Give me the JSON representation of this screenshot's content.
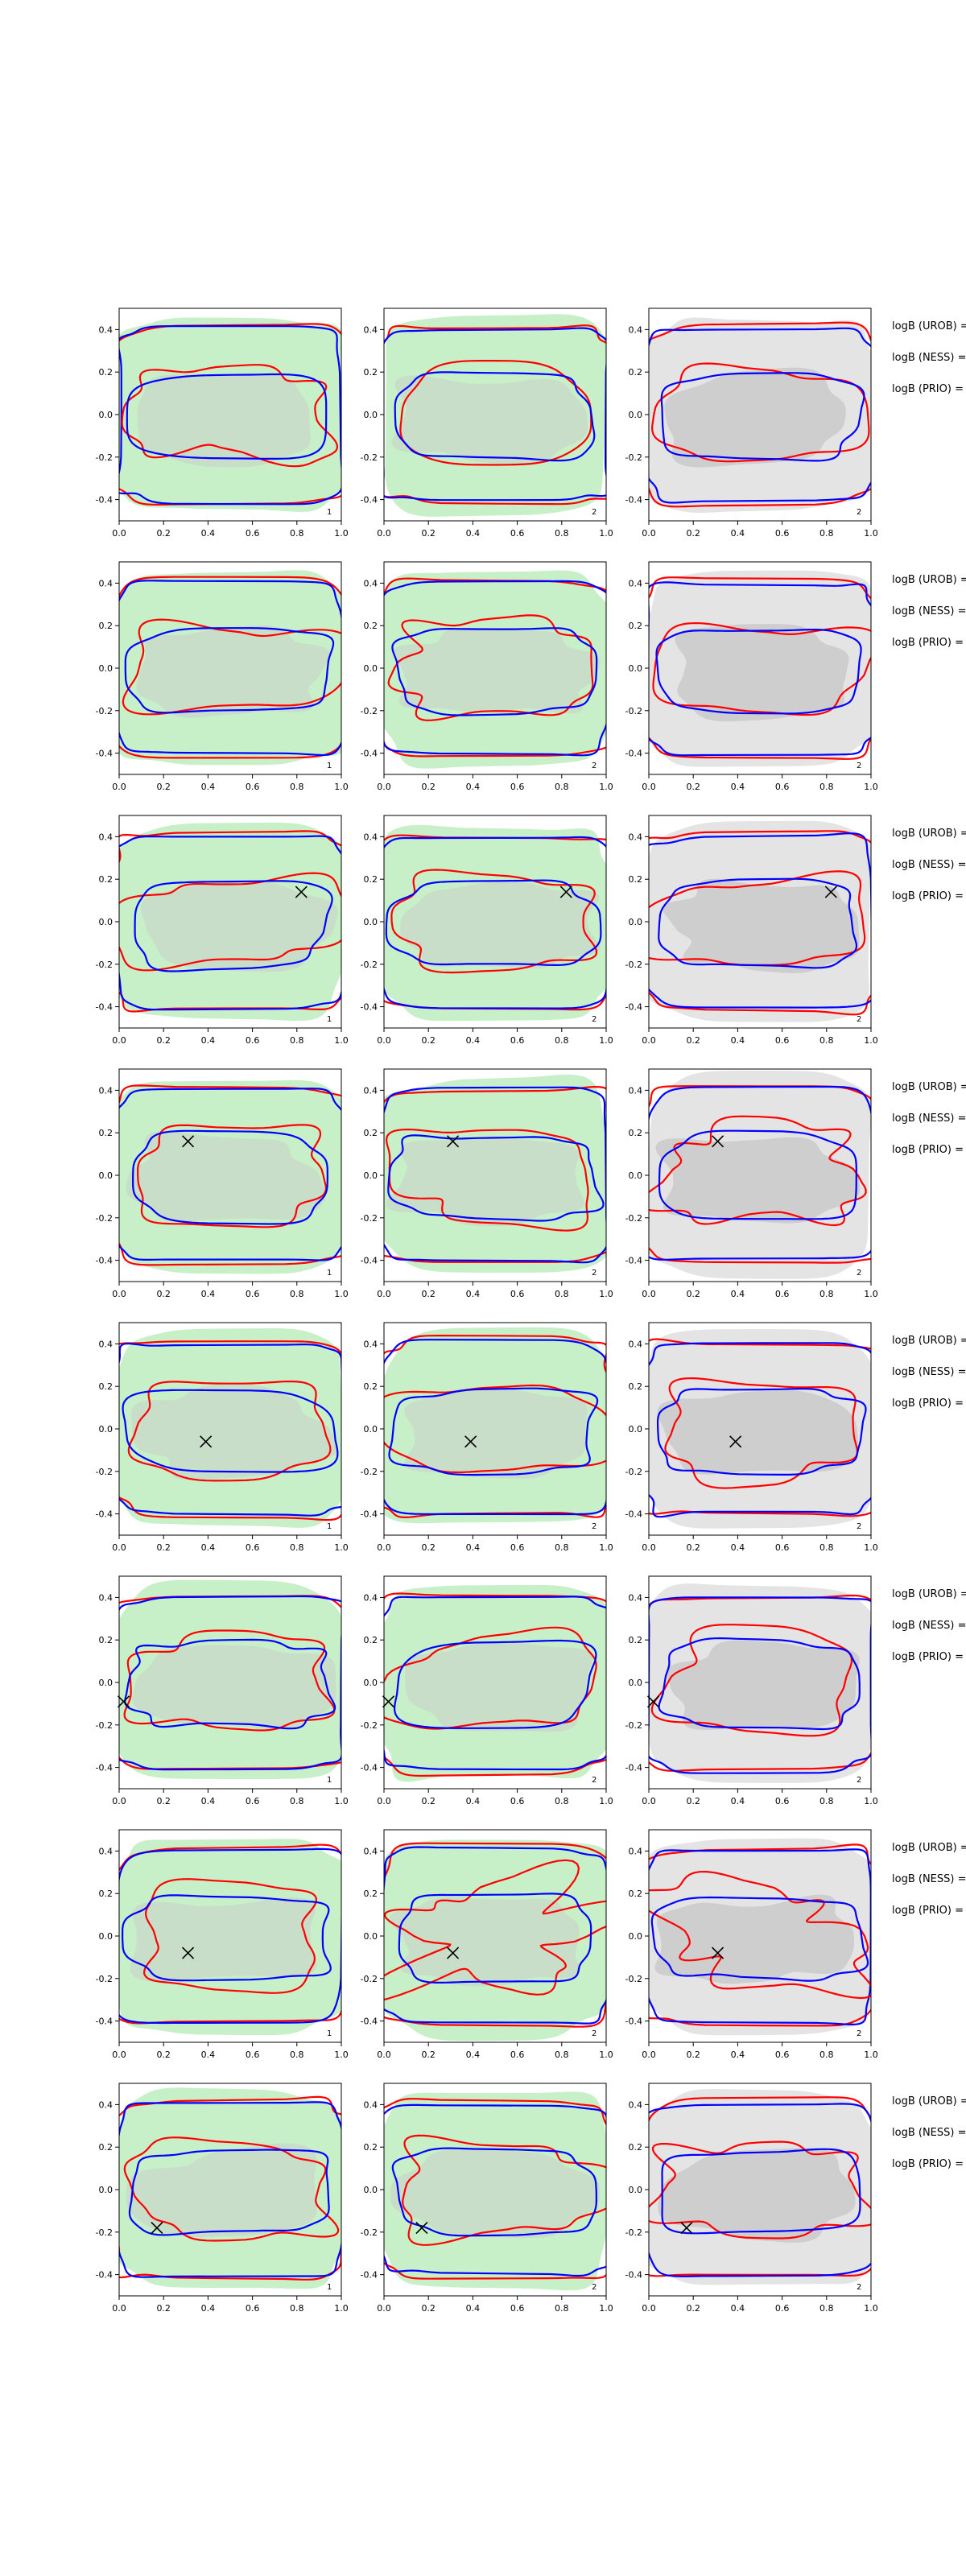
{
  "figure": {
    "rows": 8,
    "columns": 3,
    "bayes_labels": [
      "logB (UROB) =",
      "logB (NESS) =",
      "logB (PRIO) ="
    ],
    "colors": {
      "red_contour": "#ff0000",
      "blue_contour": "#0000ff",
      "green_fill": "#c8f0c8",
      "light_gray_fill": "#e4e4e4",
      "gray_fill": "#c8c8c8",
      "marker": "#000000"
    }
  },
  "chart_data": {
    "type": "scatter",
    "description_grid": "8 rows x 3 columns of contour panels",
    "xlim": [
      0.0,
      1.0
    ],
    "ylim": [
      -0.5,
      0.5
    ],
    "xticks": [
      "0.0",
      "0.2",
      "0.4",
      "0.6",
      "0.8",
      "1.0"
    ],
    "yticks": [
      "0.4",
      "0.2",
      "0.0",
      "-0.2",
      "-0.4"
    ],
    "xtick_values": [
      0.0,
      0.2,
      0.4,
      0.6,
      0.8,
      1.0
    ],
    "ytick_values": [
      0.4,
      0.2,
      0.0,
      -0.2,
      -0.4
    ],
    "grid": false,
    "column_panel_labels": [
      "1",
      "2",
      "2"
    ],
    "column_backgrounds": [
      "green",
      "green",
      "gray"
    ],
    "row_markers": [
      null,
      null,
      {
        "x": 0.82,
        "y": 0.14
      },
      {
        "x": 0.31,
        "y": 0.16
      },
      {
        "x": 0.39,
        "y": -0.06
      },
      {
        "x": 0.02,
        "y": -0.09
      },
      {
        "x": 0.31,
        "y": -0.08
      },
      {
        "x": 0.17,
        "y": -0.18
      }
    ],
    "contour_series": [
      {
        "color": "red",
        "level": "outer"
      },
      {
        "color": "red",
        "level": "inner"
      },
      {
        "color": "blue",
        "level": "outer"
      },
      {
        "color": "blue",
        "level": "inner"
      }
    ]
  }
}
